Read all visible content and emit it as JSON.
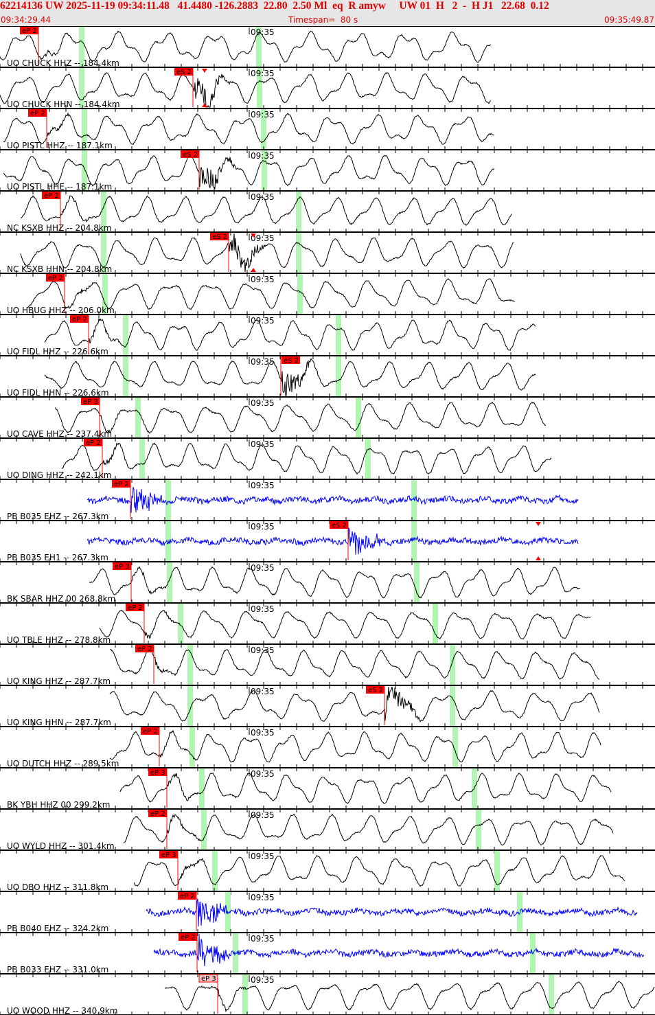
{
  "header": {
    "title": "62214136 UW 2025-11-19 09:34:11.48   41.4480 -126.2883  22.80  2.50 Ml  eq  R amyw     UW 01  H   2  -  H J1   22.68  0.12",
    "start_time": "09:34:29.44",
    "timespan": "Timespan=  80 s",
    "end_time": "09:35:49.87"
  },
  "minute_label": "09:35",
  "colors": {
    "header_text": "#e00000",
    "trace": "#000000",
    "short_period_trace": "#0000ff",
    "pick": "#ff0000",
    "theoretical_marker": "#b0f5b0"
  },
  "traces": [
    {
      "label": "UO CHUCK HHZ -- 184.4km",
      "pick": "eP 2"
    },
    {
      "label": "UO CHUCK HHN -- 184.4km",
      "pick": "eS 2"
    },
    {
      "label": "UO PISTL HHZ -- 187.1km",
      "pick": "eP 2"
    },
    {
      "label": "UO PISTL HHE -- 187.1km",
      "pick": "eS 2"
    },
    {
      "label": "NC KSXB HHZ -- 204.8km",
      "pick": "eP 2"
    },
    {
      "label": "NC KSXB HHN -- 204.8km",
      "pick": "eS 2"
    },
    {
      "label": "UO HBUG HHZ -- 206.0km",
      "pick": "eP 2"
    },
    {
      "label": "UO FIDL HHZ -- 226.6km",
      "pick": "eP 2"
    },
    {
      "label": "UO FIDL HHN -- 226.6km",
      "pick": "eS 2"
    },
    {
      "label": "UO CAVE HHZ -- 237.4km",
      "pick": "eP 3"
    },
    {
      "label": "UO DING HHZ -- 242.1km",
      "pick": "eP 2"
    },
    {
      "label": "PB B035 EHZ -- 267.3km",
      "pick": "eP 2"
    },
    {
      "label": "PB B035 EH1 -- 267.3km",
      "pick": "eS 2"
    },
    {
      "label": "BK SBAR HHZ 00 268.8km",
      "pick": "eP 3"
    },
    {
      "label": "UO TBLE HHZ -- 278.8km",
      "pick": "eP 2"
    },
    {
      "label": "UO KING HHZ -- 287.7km",
      "pick": "eP 2"
    },
    {
      "label": "UO KING HHN -- 287.7km",
      "pick": "eS 2"
    },
    {
      "label": "UO DUTCH HHZ -- 289.5km",
      "pick": "eP 2"
    },
    {
      "label": "BK YBH HHZ 00 299.2km",
      "pick": "eP 3"
    },
    {
      "label": "UO WYLD HHZ -- 301.4km",
      "pick": "eP 2"
    },
    {
      "label": "UO DBO HHZ -- 311.8km",
      "pick": "eP 3"
    },
    {
      "label": "PB B040 EHZ -- 324.2km",
      "pick": "eP 2"
    },
    {
      "label": "PB B033 EHZ -- 331.0km",
      "pick": "eP 2"
    },
    {
      "label": "UO WOOD HHZ -- 340.9km",
      "pick": "eP 3"
    }
  ]
}
